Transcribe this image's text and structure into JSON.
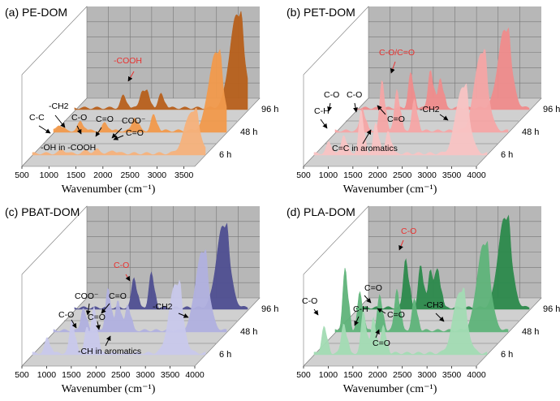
{
  "panels": [
    {
      "id": "a",
      "title": "(a)   PE-DOM",
      "color": "#cc6a1a",
      "layer_colors": [
        "#f6b27c",
        "#f29a4c",
        "#b8601c"
      ],
      "time_labels": [
        "6 h",
        "48 h",
        "96 h"
      ],
      "xticks": [
        "500",
        "1000",
        "1500",
        "2000",
        "2500",
        "3000",
        "3500"
      ],
      "xlabel": "Wavenumber (cm⁻¹)",
      "annotations": [
        {
          "text": "-COOH",
          "red": true
        },
        {
          "text": "-CH2",
          "red": false
        },
        {
          "text": "C-C",
          "red": false
        },
        {
          "text": "C-O",
          "red": false
        },
        {
          "text": "C=O",
          "red": false
        },
        {
          "text": "COO⁻",
          "red": false
        },
        {
          "text": "C=O",
          "red": false
        },
        {
          "text": "-OH in -COOH",
          "red": false
        }
      ],
      "chart_data": {
        "type": "area",
        "xlabel": "Wavenumber (cm⁻¹)",
        "x_range": [
          500,
          3700
        ],
        "series": [
          {
            "name": "6 h",
            "peaks": [
              [
                1050,
                0.05
              ],
              [
                1500,
                0.04
              ],
              [
                1700,
                0.05
              ],
              [
                2000,
                0.04
              ],
              [
                3450,
                0.55
              ]
            ]
          },
          {
            "name": "48 h",
            "peaks": [
              [
                600,
                0.08
              ],
              [
                1000,
                0.12
              ],
              [
                1450,
                0.1
              ],
              [
                2000,
                0.18
              ],
              [
                2350,
                0.2
              ],
              [
                3500,
                1.0
              ]
            ]
          },
          {
            "name": "96 h",
            "peaks": [
              [
                1400,
                0.16
              ],
              [
                1750,
                0.22
              ],
              [
                1850,
                0.14
              ],
              [
                2100,
                0.18
              ],
              [
                3500,
                1.2
              ]
            ]
          }
        ]
      }
    },
    {
      "id": "b",
      "title": "(b)   PET-DOM",
      "color": "#ee8080",
      "layer_colors": [
        "#f9c4c4",
        "#f6a6a6",
        "#f08c8c"
      ],
      "time_labels": [
        "6 h",
        "48 h",
        "96 h"
      ],
      "xticks": [
        "500",
        "1000",
        "1500",
        "2000",
        "2500",
        "3000",
        "3500",
        "4000"
      ],
      "xlabel": "Wavenumber (cm⁻¹)",
      "annotations": [
        {
          "text": "C-O/C=O",
          "red": true
        },
        {
          "text": "C-O",
          "red": false
        },
        {
          "text": "C-O",
          "red": false
        },
        {
          "text": "C-H",
          "red": false
        },
        {
          "text": "-CH2",
          "red": false
        },
        {
          "text": "C=O",
          "red": false
        },
        {
          "text": "C=C in aromatics",
          "red": false
        }
      ],
      "chart_data": {
        "type": "area",
        "xlabel": "Wavenumber (cm⁻¹)",
        "x_range": [
          500,
          4000
        ],
        "series": [
          {
            "name": "6 h",
            "peaks": [
              [
                800,
                0.15
              ],
              [
                1100,
                0.25
              ],
              [
                1450,
                0.55
              ],
              [
                1750,
                0.4
              ],
              [
                2000,
                0.3
              ],
              [
                3500,
                0.85
              ]
            ]
          },
          {
            "name": "48 h",
            "peaks": [
              [
                1050,
                0.3
              ],
              [
                1450,
                0.65
              ],
              [
                1750,
                0.55
              ],
              [
                2100,
                0.4
              ],
              [
                3450,
                1.0
              ]
            ]
          },
          {
            "name": "96 h",
            "peaks": [
              [
                1600,
                0.45
              ],
              [
                2000,
                0.5
              ],
              [
                2200,
                0.4
              ],
              [
                3500,
                1.0
              ]
            ]
          }
        ]
      }
    },
    {
      "id": "c",
      "title": "(c)   PBAT-DOM",
      "color": "#5a5a9e",
      "layer_colors": [
        "#c9c9ec",
        "#b1b1e0",
        "#4f4f92"
      ],
      "time_labels": [
        "6 h",
        "48 h",
        "96 h"
      ],
      "xticks": [
        "500",
        "1000",
        "1500",
        "2000",
        "2500",
        "3000",
        "3500",
        "4000"
      ],
      "xlabel": "Wavenumber (cm⁻¹)",
      "annotations": [
        {
          "text": "C-O",
          "red": true
        },
        {
          "text": "COO⁻",
          "red": false
        },
        {
          "text": "C=O",
          "red": false
        },
        {
          "text": "C-O",
          "red": false
        },
        {
          "text": "C=O",
          "red": false
        },
        {
          "text": "-CH2",
          "red": false
        },
        {
          "text": "-CH in aromatics",
          "red": false
        }
      ],
      "chart_data": {
        "type": "area",
        "xlabel": "Wavenumber (cm⁻¹)",
        "x_range": [
          500,
          4000
        ],
        "series": [
          {
            "name": "6 h",
            "peaks": [
              [
                800,
                0.2
              ],
              [
                1300,
                0.45
              ],
              [
                1600,
                0.35
              ],
              [
                1750,
                0.6
              ],
              [
                3400,
                0.9
              ]
            ]
          },
          {
            "name": "48 h",
            "peaks": [
              [
                1100,
                0.3
              ],
              [
                1600,
                0.55
              ],
              [
                1800,
                0.4
              ],
              [
                2000,
                0.35
              ],
              [
                3500,
                1.0
              ]
            ]
          },
          {
            "name": "96 h",
            "peaks": [
              [
                1700,
                0.4
              ],
              [
                2050,
                0.45
              ],
              [
                3500,
                1.05
              ]
            ]
          }
        ]
      }
    },
    {
      "id": "d",
      "title": "(d)   PLA-DOM",
      "color": "#3d9a5e",
      "layer_colors": [
        "#a3dcb4",
        "#5fb47a",
        "#2c8a4c"
      ],
      "time_labels": [
        "6 h",
        "48 h",
        "96 h"
      ],
      "xticks": [
        "500",
        "1000",
        "1500",
        "2000",
        "2500",
        "3000",
        "3500",
        "4000"
      ],
      "xlabel": "Wavenumber (cm⁻¹)",
      "annotations": [
        {
          "text": "C-O",
          "red": true
        },
        {
          "text": "C=O",
          "red": false
        },
        {
          "text": "C-O",
          "red": false
        },
        {
          "text": "C-H",
          "red": false
        },
        {
          "text": "C=O",
          "red": false
        },
        {
          "text": "-CH3",
          "red": false
        },
        {
          "text": "C=O",
          "red": false
        }
      ],
      "chart_data": {
        "type": "area",
        "xlabel": "Wavenumber (cm⁻¹)",
        "x_range": [
          500,
          4000
        ],
        "series": [
          {
            "name": "6 h",
            "peaks": [
              [
                700,
                0.35
              ],
              [
                1100,
                0.4
              ],
              [
                1500,
                0.55
              ],
              [
                1700,
                0.45
              ],
              [
                1900,
                0.35
              ],
              [
                3450,
                0.8
              ]
            ]
          },
          {
            "name": "48 h",
            "peaks": [
              [
                700,
                0.8
              ],
              [
                1000,
                0.5
              ],
              [
                1400,
                0.45
              ],
              [
                1750,
                0.55
              ],
              [
                2100,
                0.4
              ],
              [
                3500,
                1.1
              ]
            ]
          },
          {
            "name": "96 h",
            "peaks": [
              [
                1500,
                0.65
              ],
              [
                1800,
                0.55
              ],
              [
                2000,
                0.5
              ],
              [
                2150,
                0.5
              ],
              [
                3500,
                1.15
              ]
            ]
          }
        ]
      }
    }
  ]
}
